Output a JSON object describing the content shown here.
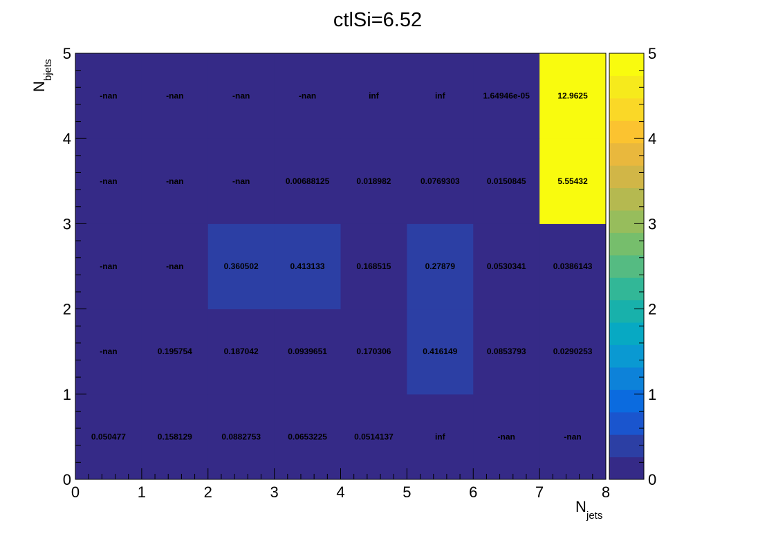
{
  "chart_data": {
    "type": "heatmap",
    "title": "ctlSi=6.52",
    "xlabel": {
      "main": "N",
      "sub": "jets"
    },
    "ylabel": {
      "main": "N",
      "sub": "bjets"
    },
    "xlim": [
      0,
      8
    ],
    "ylim": [
      0,
      5
    ],
    "zlim": [
      0,
      5
    ],
    "x_ticks": [
      "0",
      "1",
      "2",
      "3",
      "4",
      "5",
      "6",
      "7",
      "8"
    ],
    "y_ticks": [
      "0",
      "1",
      "2",
      "3",
      "4",
      "5"
    ],
    "z_ticks": [
      "0",
      "1",
      "2",
      "3",
      "4",
      "5"
    ],
    "colormap": [
      "#352a87",
      "#2c3fa4",
      "#1a55ce",
      "#0b6bdf",
      "#0d82d9",
      "#0a99d2",
      "#07a9c3",
      "#18b1ab",
      "#32b797",
      "#55bb82",
      "#76be6c",
      "#97bd5c",
      "#b5b950",
      "#d1b647",
      "#e9b83d",
      "#fbc330",
      "#fad827",
      "#f6ea1c",
      "#f9fb0e"
    ],
    "cells": [
      [
        {
          "text": "0.050477",
          "value": 0.050477
        },
        {
          "text": "0.158129",
          "value": 0.158129
        },
        {
          "text": "0.0882753",
          "value": 0.0882753
        },
        {
          "text": "0.0653225",
          "value": 0.0653225
        },
        {
          "text": "0.0514137",
          "value": 0.0514137
        },
        {
          "text": "inf",
          "value": null
        },
        {
          "text": "-nan",
          "value": null
        },
        {
          "text": "-nan",
          "value": null
        }
      ],
      [
        {
          "text": "-nan",
          "value": null
        },
        {
          "text": "0.195754",
          "value": 0.195754
        },
        {
          "text": "0.187042",
          "value": 0.187042
        },
        {
          "text": "0.0939651",
          "value": 0.0939651
        },
        {
          "text": "0.170306",
          "value": 0.170306
        },
        {
          "text": "0.416149",
          "value": 0.416149
        },
        {
          "text": "0.0853793",
          "value": 0.0853793
        },
        {
          "text": "0.0290253",
          "value": 0.0290253
        }
      ],
      [
        {
          "text": "-nan",
          "value": null
        },
        {
          "text": "-nan",
          "value": null
        },
        {
          "text": "0.360502",
          "value": 0.360502
        },
        {
          "text": "0.413133",
          "value": 0.413133
        },
        {
          "text": "0.168515",
          "value": 0.168515
        },
        {
          "text": "0.27879",
          "value": 0.27879
        },
        {
          "text": "0.0530341",
          "value": 0.0530341
        },
        {
          "text": "0.0386143",
          "value": 0.0386143
        }
      ],
      [
        {
          "text": "-nan",
          "value": null
        },
        {
          "text": "-nan",
          "value": null
        },
        {
          "text": "-nan",
          "value": null
        },
        {
          "text": "0.00688125",
          "value": 0.00688125
        },
        {
          "text": "0.018982",
          "value": 0.018982
        },
        {
          "text": "0.0769303",
          "value": 0.0769303
        },
        {
          "text": "0.0150845",
          "value": 0.0150845
        },
        {
          "text": "5.55432",
          "value": 5.55432
        }
      ],
      [
        {
          "text": "-nan",
          "value": null
        },
        {
          "text": "-nan",
          "value": null
        },
        {
          "text": "-nan",
          "value": null
        },
        {
          "text": "-nan",
          "value": null
        },
        {
          "text": "inf",
          "value": null
        },
        {
          "text": "inf",
          "value": null
        },
        {
          "text": "1.64946e-05",
          "value": 1.64946e-05
        },
        {
          "text": "12.9625",
          "value": 12.9625
        }
      ]
    ]
  }
}
